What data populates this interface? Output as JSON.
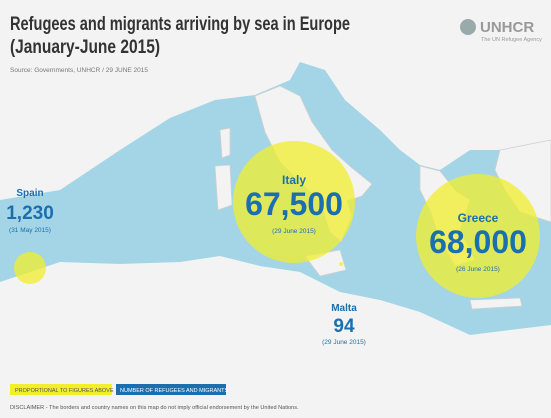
{
  "header": {
    "title_lines": [
      "Refugees and migrants arriving by sea in Europe",
      "(January-June 2015)"
    ],
    "source": "Source: Governments, UNHCR / 29 JUNE 2015"
  },
  "logo": {
    "name": "UNHCR",
    "tagline": "The UN Refugee Agency"
  },
  "countries": [
    {
      "name": "Spain",
      "figure": "1,230",
      "date": "(31 May 2015)"
    },
    {
      "name": "Italy",
      "figure": "67,500",
      "date": "(29 June 2015)"
    },
    {
      "name": "Greece",
      "figure": "68,000",
      "date": "(26 June 2015)"
    },
    {
      "name": "Malta",
      "figure": "94",
      "date": "(29 June 2015)"
    }
  ],
  "legend": [
    "PROPORTIONAL TO FIGURES ABOVE",
    "NUMBER OF REFUGEES AND MIGRANTS"
  ],
  "disclaimer": "DISCLAIMER - The borders and country names on this map do not imply official endorsement by the United Nations."
}
